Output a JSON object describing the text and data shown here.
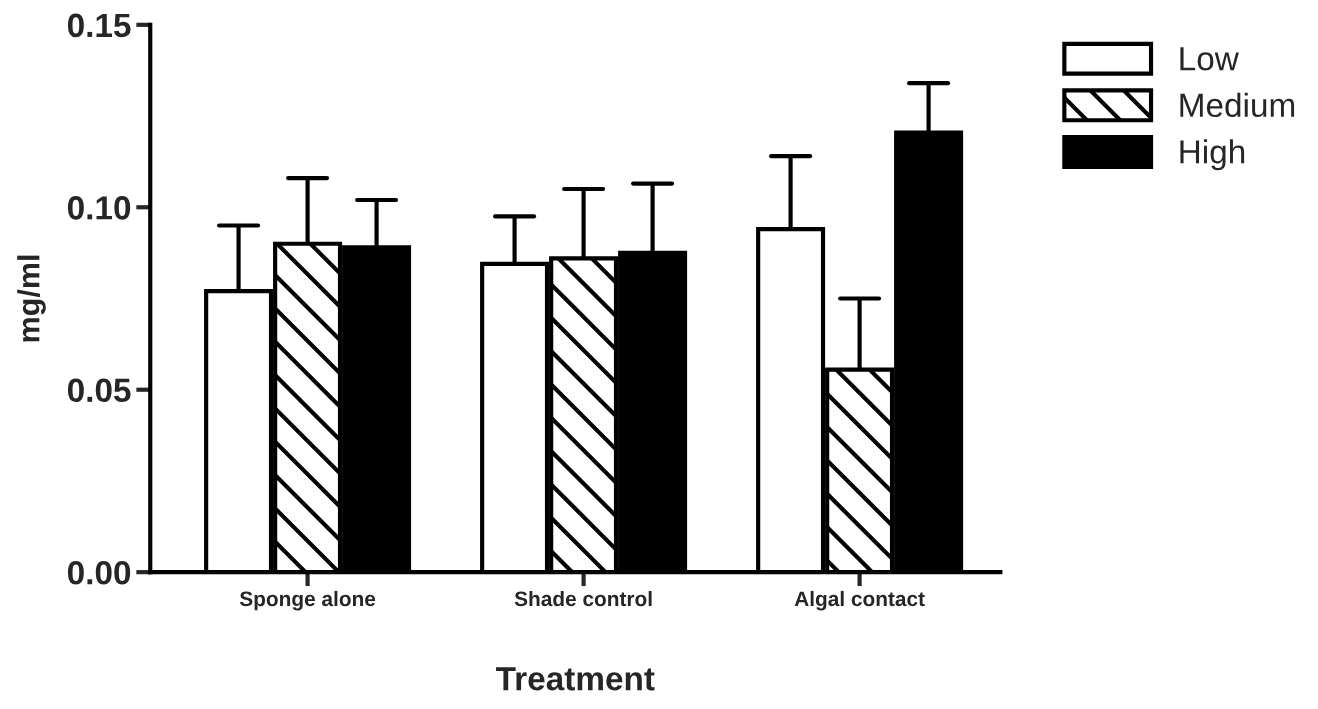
{
  "chart_data": {
    "type": "bar",
    "xlabel": "Treatment",
    "ylabel": "mg/ml",
    "categories": [
      "Sponge alone",
      "Shade control",
      "Algal contact"
    ],
    "series": [
      {
        "name": "Low",
        "color": "#ffffff",
        "values": [
          0.077,
          0.0845,
          0.094
        ],
        "errors": [
          [
            0.077,
            0.095
          ],
          [
            0.0845,
            0.0975
          ],
          [
            0.094,
            0.114
          ]
        ]
      },
      {
        "name": "Medium",
        "color": "#ffffff",
        "values": [
          0.09,
          0.086,
          0.0555
        ],
        "errors": [
          [
            0.09,
            0.108
          ],
          [
            0.086,
            0.105
          ],
          [
            0.0555,
            0.075
          ]
        ]
      },
      {
        "name": "High",
        "color": "#000000",
        "values": [
          0.089,
          0.0875,
          0.1205
        ],
        "errors": [
          [
            0.089,
            0.102
          ],
          [
            0.0875,
            0.1065
          ],
          [
            0.1205,
            0.134
          ]
        ]
      }
    ],
    "ylim": [
      0,
      0.15
    ],
    "yticks": [
      {
        "value": 0,
        "label": "0.00"
      },
      {
        "value": 0.05,
        "label": "0.05"
      },
      {
        "value": 0.1,
        "label": "0.10"
      },
      {
        "value": 0.15,
        "label": "0.15"
      }
    ],
    "grid": false,
    "legend": "top right"
  }
}
